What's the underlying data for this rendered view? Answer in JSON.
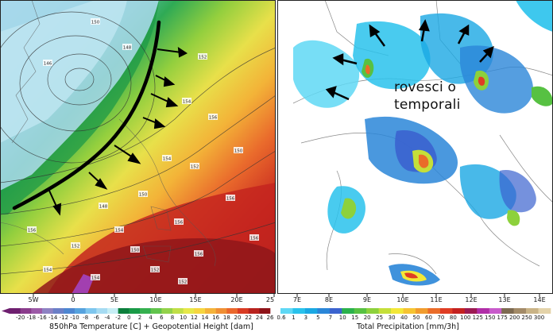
{
  "left_map": {
    "lon_labels": [
      "5W",
      "0",
      "5E",
      "10E",
      "15E",
      "20E",
      "25"
    ],
    "colorbar_labels": [
      "-20",
      "-18",
      "-16",
      "-14",
      "-12",
      "-10",
      "-8",
      "-6",
      "-4",
      "-2",
      "0",
      "2",
      "4",
      "6",
      "8",
      "10",
      "12",
      "14",
      "16",
      "18",
      "20",
      "22",
      "24",
      "26"
    ],
    "colorbar_colors": [
      "#6e1f6f",
      "#8a3c8c",
      "#9c5aa7",
      "#8e82c3",
      "#6b7fc7",
      "#4d86d1",
      "#56a2de",
      "#7ec6ee",
      "#a6dbf2",
      "#c6eef5",
      "#0c7f3c",
      "#1a9a47",
      "#35b04f",
      "#61c44d",
      "#93d24a",
      "#c0df47",
      "#e6e849",
      "#f6d540",
      "#f4b33a",
      "#f08f34",
      "#ea672c",
      "#d93b23",
      "#b8221d",
      "#8e1218"
    ],
    "colorbar_title": "850hPa Temperature [C] + Geopotential Height [dam]",
    "height_labels": [
      "150",
      "146",
      "148",
      "152",
      "154",
      "156",
      "154",
      "150",
      "152",
      "150",
      "148",
      "156",
      "154",
      "156",
      "152",
      "150",
      "156",
      "154",
      "152",
      "156",
      "156",
      "154",
      "152"
    ]
  },
  "right_map": {
    "lon_labels": [
      "7E",
      "8E",
      "9E",
      "10E",
      "11E",
      "12E",
      "13E",
      "14E"
    ],
    "annotation": [
      "rovesci o",
      "temporali"
    ],
    "colorbar_labels": [
      "0.6",
      "1",
      "3",
      "5",
      "7",
      "10",
      "15",
      "20",
      "25",
      "30",
      "40",
      "50",
      "60",
      "70",
      "80",
      "100",
      "125",
      "150",
      "175",
      "200",
      "250",
      "300"
    ],
    "colorbar_colors": [
      "#5fd8f5",
      "#29c2ec",
      "#1aa8e3",
      "#2a86d8",
      "#3b63cf",
      "#2bb24c",
      "#57c142",
      "#8dd13c",
      "#c5df39",
      "#f3e838",
      "#f6c432",
      "#f19c2e",
      "#ea6c29",
      "#df3d24",
      "#c4211f",
      "#9c1a52",
      "#b02ea7",
      "#c85bcb",
      "#7d6a51",
      "#a38b68",
      "#c9b386",
      "#e4d3a9"
    ],
    "colorbar_title": "Total Precipitation [mm/3h]"
  }
}
